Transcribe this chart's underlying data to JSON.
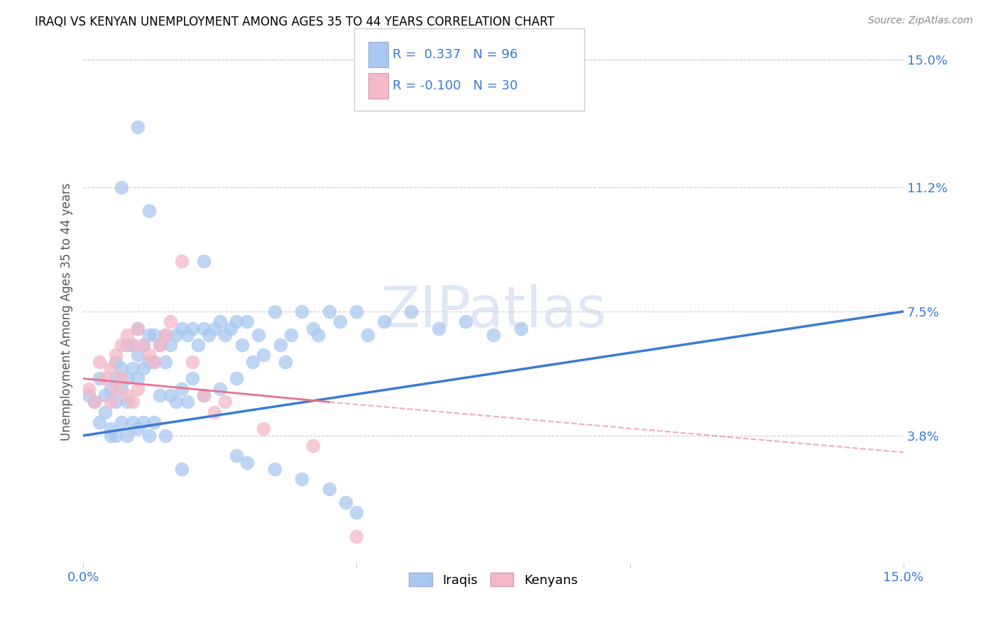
{
  "title": "IRAQI VS KENYAN UNEMPLOYMENT AMONG AGES 35 TO 44 YEARS CORRELATION CHART",
  "source": "Source: ZipAtlas.com",
  "ylabel": "Unemployment Among Ages 35 to 44 years",
  "xlim": [
    0.0,
    0.15
  ],
  "ylim": [
    0.0,
    0.15
  ],
  "y_ticks": [
    0.038,
    0.075,
    0.112,
    0.15
  ],
  "y_tick_labels": [
    "3.8%",
    "7.5%",
    "11.2%",
    "15.0%"
  ],
  "x_ticks": [
    0.0,
    0.05,
    0.1,
    0.15
  ],
  "x_tick_labels": [
    "0.0%",
    "",
    "",
    "15.0%"
  ],
  "iraqi_color": "#a8c8f0",
  "kenyan_color": "#f4b8c8",
  "iraqi_line_color": "#3a7bd5",
  "kenyan_line_color": "#e87090",
  "iraqi_R": 0.337,
  "iraqi_N": 96,
  "kenyan_R": -0.1,
  "kenyan_N": 30,
  "watermark": "ZIPatlas",
  "iraqi_line_x0": 0.0,
  "iraqi_line_y0": 0.038,
  "iraqi_line_x1": 0.15,
  "iraqi_line_y1": 0.075,
  "kenyan_line_solid_x0": 0.0,
  "kenyan_line_solid_y0": 0.055,
  "kenyan_line_solid_x1": 0.045,
  "kenyan_line_solid_y1": 0.048,
  "kenyan_line_dash_x0": 0.045,
  "kenyan_line_dash_y0": 0.048,
  "kenyan_line_dash_x1": 0.15,
  "kenyan_line_dash_y1": 0.033,
  "iraqi_x": [
    0.001,
    0.002,
    0.003,
    0.003,
    0.004,
    0.004,
    0.005,
    0.005,
    0.005,
    0.006,
    0.006,
    0.006,
    0.006,
    0.007,
    0.007,
    0.007,
    0.008,
    0.008,
    0.008,
    0.008,
    0.009,
    0.009,
    0.009,
    0.01,
    0.01,
    0.01,
    0.01,
    0.011,
    0.011,
    0.011,
    0.012,
    0.012,
    0.012,
    0.013,
    0.013,
    0.013,
    0.014,
    0.014,
    0.015,
    0.015,
    0.015,
    0.016,
    0.016,
    0.017,
    0.017,
    0.018,
    0.018,
    0.019,
    0.019,
    0.02,
    0.02,
    0.021,
    0.022,
    0.022,
    0.023,
    0.024,
    0.025,
    0.025,
    0.026,
    0.027,
    0.028,
    0.028,
    0.029,
    0.03,
    0.031,
    0.032,
    0.033,
    0.035,
    0.036,
    0.037,
    0.038,
    0.04,
    0.042,
    0.043,
    0.045,
    0.047,
    0.05,
    0.052,
    0.055,
    0.06,
    0.065,
    0.07,
    0.075,
    0.08,
    0.03,
    0.035,
    0.04,
    0.045,
    0.048,
    0.05,
    0.01,
    0.012,
    0.007,
    0.022,
    0.028,
    0.018
  ],
  "iraqi_y": [
    0.05,
    0.048,
    0.055,
    0.042,
    0.05,
    0.045,
    0.052,
    0.04,
    0.038,
    0.06,
    0.055,
    0.048,
    0.038,
    0.058,
    0.052,
    0.042,
    0.065,
    0.055,
    0.048,
    0.038,
    0.065,
    0.058,
    0.042,
    0.07,
    0.062,
    0.055,
    0.04,
    0.065,
    0.058,
    0.042,
    0.068,
    0.06,
    0.038,
    0.068,
    0.06,
    0.042,
    0.065,
    0.05,
    0.068,
    0.06,
    0.038,
    0.065,
    0.05,
    0.068,
    0.048,
    0.07,
    0.052,
    0.068,
    0.048,
    0.07,
    0.055,
    0.065,
    0.07,
    0.05,
    0.068,
    0.07,
    0.072,
    0.052,
    0.068,
    0.07,
    0.072,
    0.055,
    0.065,
    0.072,
    0.06,
    0.068,
    0.062,
    0.075,
    0.065,
    0.06,
    0.068,
    0.075,
    0.07,
    0.068,
    0.075,
    0.072,
    0.075,
    0.068,
    0.072,
    0.075,
    0.07,
    0.072,
    0.068,
    0.07,
    0.03,
    0.028,
    0.025,
    0.022,
    0.018,
    0.015,
    0.13,
    0.105,
    0.112,
    0.09,
    0.032,
    0.028
  ],
  "kenyan_x": [
    0.001,
    0.002,
    0.003,
    0.004,
    0.005,
    0.005,
    0.006,
    0.006,
    0.007,
    0.007,
    0.008,
    0.008,
    0.009,
    0.009,
    0.01,
    0.01,
    0.011,
    0.012,
    0.013,
    0.014,
    0.015,
    0.016,
    0.018,
    0.02,
    0.022,
    0.024,
    0.026,
    0.033,
    0.042,
    0.05
  ],
  "kenyan_y": [
    0.052,
    0.048,
    0.06,
    0.055,
    0.058,
    0.048,
    0.062,
    0.052,
    0.065,
    0.055,
    0.068,
    0.05,
    0.065,
    0.048,
    0.07,
    0.052,
    0.065,
    0.062,
    0.06,
    0.065,
    0.068,
    0.072,
    0.09,
    0.06,
    0.05,
    0.045,
    0.048,
    0.04,
    0.035,
    0.008
  ]
}
